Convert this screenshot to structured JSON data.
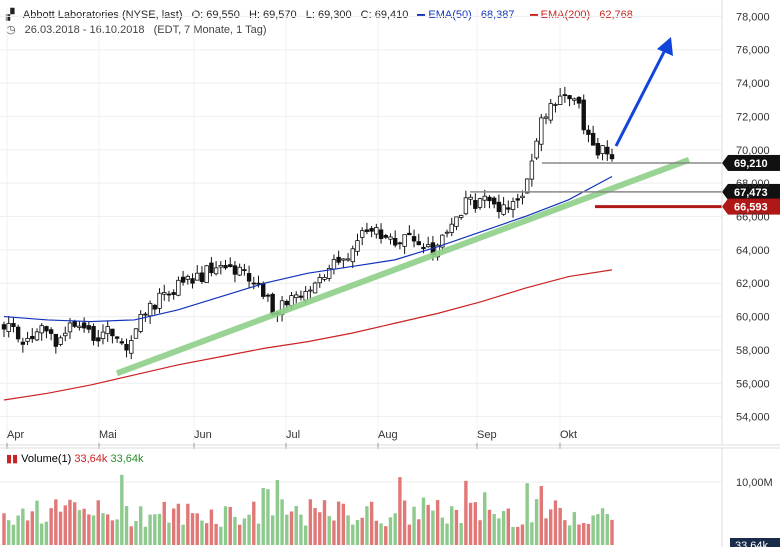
{
  "header": {
    "instrument": "Abbott Laboratories (NYSE, last)",
    "open": "O: 69,550",
    "high": "H: 69,570",
    "low": "L: 69,300",
    "close": "C: 69,410",
    "ema50_label": "EMA(50)",
    "ema50_value": "68,387",
    "ema200_label": "EMA(200)",
    "ema200_value": "62,768",
    "period": "26.03.2018 - 16.10.2018",
    "period_info": "(EDT, 7 Monate, 1 Tag)",
    "ema50_color": "#1133bb",
    "ema200_color": "#cc2222"
  },
  "price_axis": {
    "ticks": [
      "78,000",
      "76,000",
      "74,000",
      "72,000",
      "70,000",
      "68,000",
      "66,000",
      "64,000",
      "62,000",
      "60,000",
      "58,000",
      "56,000",
      "54,000"
    ]
  },
  "price_labels": {
    "current": "69,210",
    "support": "67,473",
    "stop": "66,593"
  },
  "time_axis": {
    "labels": [
      "Apr",
      "Mai",
      "Jun",
      "Jul",
      "Aug",
      "Sep",
      "Okt"
    ]
  },
  "volume": {
    "label": "Volume(1)",
    "up_value": "33,64k",
    "down_value": "33,64k",
    "axis_label": "10,00M",
    "bottom_label": "33,64k",
    "up_color": "#8ec98e",
    "down_color": "#e07878"
  },
  "chart_data": {
    "type": "candlestick",
    "ylim": [
      53.5,
      78.5
    ],
    "x_categories": [
      "Apr",
      "Mai",
      "Jun",
      "Jul",
      "Aug",
      "Sep",
      "Okt"
    ],
    "ema50": [
      60.0,
      59.8,
      59.7,
      59.8,
      60.4,
      61.2,
      62.0,
      62.6,
      63.0,
      63.4,
      64.2,
      65.1,
      66.0,
      67.0,
      68.4
    ],
    "ema200": [
      55.0,
      55.4,
      55.9,
      56.5,
      57.1,
      57.6,
      58.1,
      58.5,
      59.0,
      59.6,
      60.2,
      60.9,
      61.7,
      62.4,
      62.8
    ],
    "close_path": [
      59.5,
      58.8,
      59.2,
      58.5,
      59.6,
      58.7,
      59.3,
      58.2,
      60.6,
      61.3,
      62.3,
      62.5,
      63.4,
      62.7,
      61.9,
      60.4,
      60.8,
      61.6,
      62.5,
      63.5,
      64.8,
      65.2,
      64.6,
      64.9,
      63.8,
      65.8,
      66.8,
      67.2,
      66.2,
      67.5,
      71.5,
      73.5,
      72.7,
      70.2,
      69.4
    ],
    "trendline_start": 56.6,
    "trendline_end": 69.4,
    "levels": {
      "current": 69.21,
      "support": 67.473,
      "stop": 66.593
    },
    "volume_axis_max": 10.0
  }
}
